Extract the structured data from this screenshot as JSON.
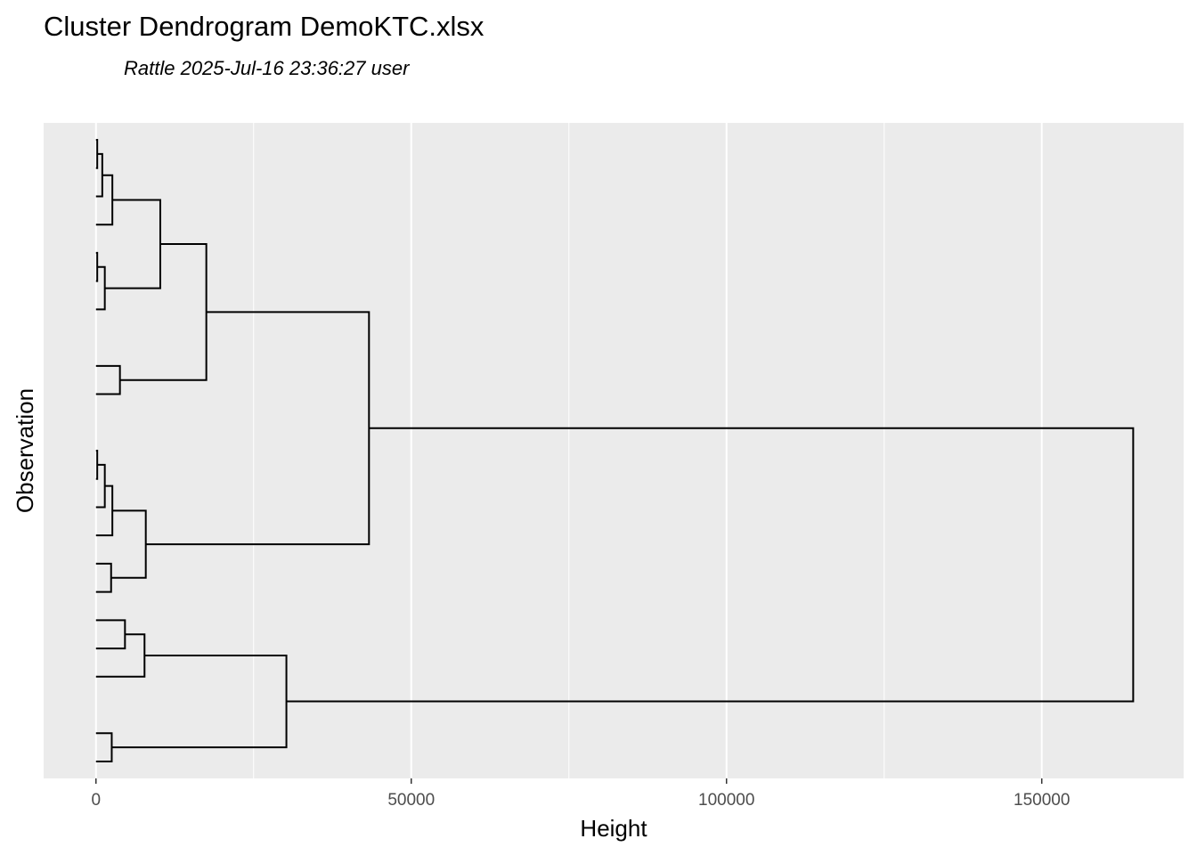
{
  "chart_data": {
    "type": "dendrogram",
    "title": "Cluster Dendrogram DemoKTC.xlsx",
    "subtitle": "Rattle 2025-Jul-16 23:36:27 user",
    "xlabel": "Height",
    "ylabel": "Observation",
    "xlim": [
      -8300,
      172500
    ],
    "ylim": [
      0.4,
      23.6
    ],
    "x_ticks": [
      {
        "value": 0,
        "label": "0"
      },
      {
        "value": 50000,
        "label": "50000"
      },
      {
        "value": 100000,
        "label": "100000"
      },
      {
        "value": 150000,
        "label": "150000"
      }
    ],
    "minor_x_ticks": [
      25000,
      75000,
      125000
    ],
    "grid": true,
    "panel_background": "#ebebeb",
    "line_color": "#000000",
    "merges": [
      {
        "y1": 23,
        "y2": 22,
        "height": 200
      },
      {
        "y1": 19,
        "y2": 18,
        "height": 200
      },
      {
        "y1": 12,
        "y2": 11,
        "height": 200
      },
      {
        "y1": 22.5,
        "y2": 21,
        "height": 1000
      },
      {
        "y1": 18.5,
        "y2": 17,
        "height": 1400
      },
      {
        "y1": 11.5,
        "y2": 10,
        "height": 1400
      },
      {
        "y1": 21.75,
        "y2": 20,
        "height": 2600
      },
      {
        "y1": 10.75,
        "y2": 9,
        "height": 2600
      },
      {
        "y1": 8,
        "y2": 7,
        "height": 2400
      },
      {
        "y1": 2,
        "y2": 1,
        "height": 2500
      },
      {
        "y1": 15,
        "y2": 14,
        "height": 3800
      },
      {
        "y1": 6,
        "y2": 5,
        "height": 4600
      },
      {
        "y1": 5.5,
        "y2": 4,
        "height": 7700
      },
      {
        "y1": 9.875,
        "y2": 7.5,
        "height": 7900
      },
      {
        "y1": 20.875,
        "y2": 17.75,
        "height": 10200
      },
      {
        "y1": 19.3125,
        "y2": 14.5,
        "height": 17500
      },
      {
        "y1": 4.75,
        "y2": 1.5,
        "height": 30200
      },
      {
        "y1": 16.90625,
        "y2": 8.6875,
        "height": 43300
      },
      {
        "y1": 12.796875,
        "y2": 3.125,
        "height": 164500
      }
    ]
  }
}
